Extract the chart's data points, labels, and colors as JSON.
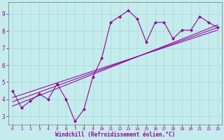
{
  "xlabel": "Windchill (Refroidissement éolien,°C)",
  "background_color": "#c4ecec",
  "line_color": "#990099",
  "xlim": [
    -0.5,
    23.5
  ],
  "ylim": [
    2.5,
    9.7
  ],
  "xticks": [
    0,
    1,
    2,
    3,
    4,
    5,
    6,
    7,
    8,
    9,
    10,
    11,
    12,
    13,
    14,
    15,
    16,
    17,
    18,
    19,
    20,
    21,
    22,
    23
  ],
  "yticks": [
    3,
    4,
    5,
    6,
    7,
    8,
    9
  ],
  "data_x": [
    0,
    1,
    2,
    3,
    4,
    5,
    6,
    7,
    8,
    9,
    10,
    11,
    12,
    13,
    14,
    15,
    16,
    17,
    18,
    19,
    20,
    21,
    22,
    23
  ],
  "data_y": [
    4.5,
    3.5,
    3.9,
    4.3,
    4.0,
    4.9,
    4.0,
    2.7,
    3.4,
    5.3,
    6.4,
    8.5,
    8.85,
    9.2,
    8.7,
    7.35,
    8.5,
    8.5,
    7.55,
    8.05,
    8.05,
    8.85,
    8.5,
    8.2
  ],
  "reg_lines": [
    [
      3.6,
      8.35
    ],
    [
      3.85,
      8.2
    ],
    [
      4.1,
      8.05
    ]
  ],
  "grid_color": "#a8d8d8",
  "xlabel_fontsize": 5.5,
  "tick_fontsize_x": 4.5,
  "tick_fontsize_y": 5.5
}
